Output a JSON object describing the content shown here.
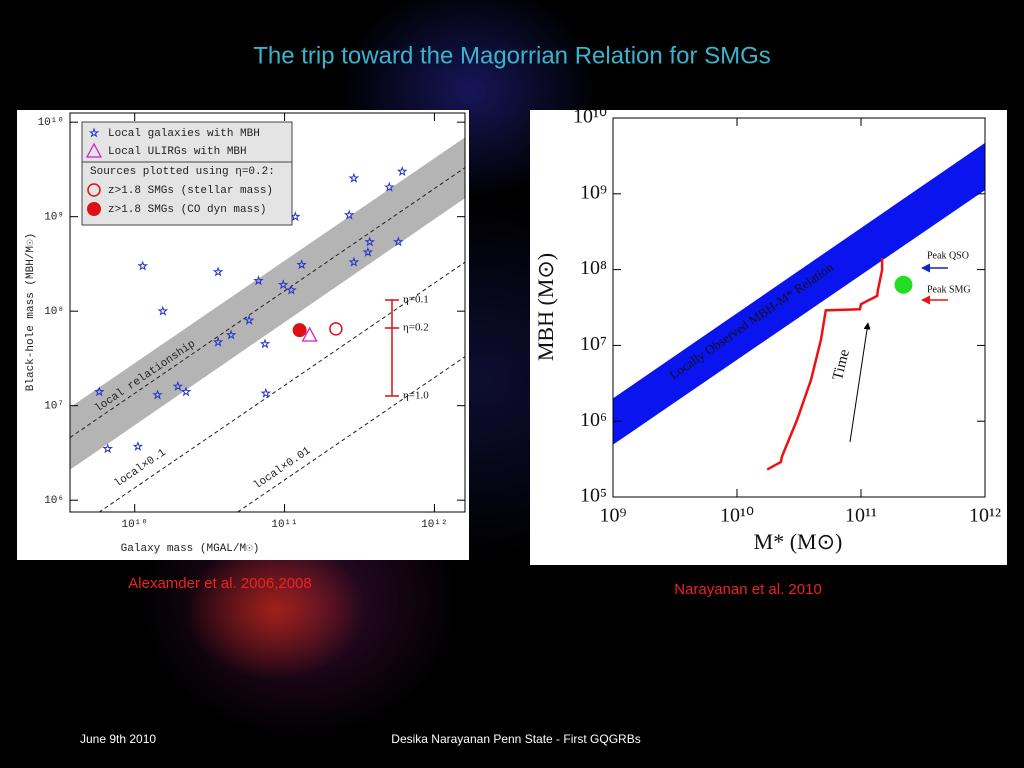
{
  "title": "The trip toward the Magorrian Relation for SMGs",
  "captions": [
    "Alexamder et al. 2006,2008",
    "Narayanan et al. 2010"
  ],
  "footer": {
    "date": "June 9th 2010",
    "text": "Desika Narayanan   Penn State - First GQGRBs"
  },
  "chart_data": [
    {
      "type": "scatter",
      "log_x": true,
      "log_y": true,
      "x_label": "Galaxy mass (MGAL/M☉)",
      "y_label": "Black-hole mass (MBH/M☉)",
      "xlim": [
        3700000000.0,
        1600000000000.0
      ],
      "ylim": [
        750000.0,
        12500000000.0
      ],
      "xticks": [
        {
          "value": 10000000000.0,
          "label": "10¹⁰"
        },
        {
          "value": 100000000000.0,
          "label": "10¹¹"
        },
        {
          "value": 1000000000000.0,
          "label": "10¹²"
        }
      ],
      "yticks": [
        {
          "value": 1000000.0,
          "label": "10⁶"
        },
        {
          "value": 10000000.0,
          "label": "10⁷"
        },
        {
          "value": 100000000.0,
          "label": "10⁸"
        },
        {
          "value": 1000000000.0,
          "label": "10⁹"
        },
        {
          "value": 10000000000.0,
          "label": "10¹⁰"
        }
      ],
      "bands": [
        {
          "color": "#b4b4b4",
          "x": [
            3700000000.0,
            1600000000000.0
          ],
          "lower": [
            2100000.0,
            1570000000.0
          ],
          "upper": [
            9600000.0,
            6900000000.0
          ]
        }
      ],
      "relations": [
        {
          "name": "local relationship",
          "x": [
            3700000000.0,
            1600000000000.0
          ],
          "y": [
            4600000.0,
            3300000000.0
          ]
        },
        {
          "name": "local×0.1",
          "x": [
            3700000000.0,
            1600000000000.0
          ],
          "y": [
            460000.0,
            330000000.0
          ]
        },
        {
          "name": "local×0.01",
          "x": [
            3700000000.0,
            1600000000000.0
          ],
          "y": [
            46000.0,
            33000000.0
          ]
        }
      ],
      "legend_note": "Sources plotted using η=0.2:",
      "series": [
        {
          "name": "Local galaxies with MBH",
          "marker": "star",
          "color": "#2233cc",
          "x": [
            610000000000.0,
            290000000000.0,
            500000000000.0,
            118000000000.0,
            270000000000.0,
            370000000000.0,
            575000000000.0,
            360000000000.0,
            290000000000.0,
            11300000000.0,
            36000000000.0,
            67000000000.0,
            98000000000.0,
            130000000000.0,
            111000000000.0,
            15400000000.0,
            58000000000.0,
            74000000000.0,
            36000000000.0,
            44000000000.0,
            5800000000.0,
            14200000000.0,
            19400000000.0,
            22000000000.0,
            75000000000.0,
            6600000000.0,
            10500000000.0
          ],
          "y": [
            3000000000.0,
            2550000000.0,
            2050000000.0,
            1000000000.0,
            1040000000.0,
            540000000.0,
            540000000.0,
            420000000.0,
            330000000.0,
            300000000.0,
            260000000.0,
            210000000.0,
            190000000.0,
            310000000.0,
            167000000.0,
            100000000.0,
            80000000.0,
            45000000.0,
            47000000.0,
            56000000.0,
            14000000.0,
            13000000.0,
            16000000.0,
            14000000.0,
            13500000.0,
            3500000.0,
            3700000.0
          ]
        },
        {
          "name": "Local ULIRGs with MBH",
          "marker": "triangle",
          "color": "#cc22cc",
          "x": [
            147000000000.0
          ],
          "y": [
            56000000.0
          ]
        },
        {
          "name": "z>1.8 SMGs (stellar mass)",
          "marker": "circle-open",
          "color": "#dd1111",
          "x": [
            220000000000.0
          ],
          "y": [
            65000000.0
          ]
        },
        {
          "name": "z>1.8 SMGs (CO dyn mass)",
          "marker": "circle",
          "color": "#dd1111",
          "x": [
            126000000000.0
          ],
          "y": [
            63000000.0
          ]
        }
      ],
      "annotations": [
        "η=0.1",
        "η=0.2",
        "η=1.0"
      ]
    },
    {
      "type": "scatter",
      "log_x": true,
      "log_y": true,
      "x_label": "M* (M⊙)",
      "y_label": "MBH (M⊙)",
      "xlim": [
        1000000000.0,
        1000000000000.0
      ],
      "ylim": [
        100000.0,
        10000000000.0
      ],
      "xticks": [
        {
          "value": 1000000000.0,
          "label": "10⁹"
        },
        {
          "value": 10000000000.0,
          "label": "10¹⁰"
        },
        {
          "value": 100000000000.0,
          "label": "10¹¹"
        },
        {
          "value": 1000000000000.0,
          "label": "10¹²"
        }
      ],
      "yticks": [
        {
          "value": 100000.0,
          "label": "10⁵"
        },
        {
          "value": 1000000.0,
          "label": "10⁶"
        },
        {
          "value": 10000000.0,
          "label": "10⁷"
        },
        {
          "value": 100000000.0,
          "label": "10⁸"
        },
        {
          "value": 1000000000.0,
          "label": "10⁹"
        },
        {
          "value": 10000000000.0,
          "label": "10¹⁰"
        }
      ],
      "bands": [
        {
          "name": "Locally Observed MBH-M* Relation",
          "color": "#0a14ee",
          "x": [
            1000000000.0,
            1000000000000.0
          ],
          "lower": [
            490000.0,
            1120000000.0
          ],
          "upper": [
            2000000.0,
            4700000000.0
          ]
        }
      ],
      "series": [
        {
          "marker": "line",
          "color": "#ee1111",
          "x": [
            17500000000.0,
            22600000000.0,
            23000000000.0,
            30500000000.0,
            39500000000.0,
            47500000000.0,
            52000000000.0,
            98000000000.0,
            100000000000.0,
            135000000000.0,
            137000000000.0,
            148000000000.0,
            148000000000.0
          ],
          "y": [
            230000.0,
            290000.0,
            340000.0,
            1040000.0,
            3500000.0,
            11800000.0,
            29000000.0,
            30000000.0,
            35000000.0,
            45000000.0,
            54000000.0,
            99000000.0,
            142000000.0
          ]
        },
        {
          "marker": "circle",
          "color": "#22dd22",
          "x": [
            220000000000.0
          ],
          "y": [
            63000000.0
          ]
        }
      ],
      "annotations": [
        "Peak QSO",
        "Peak SMG",
        "Time"
      ]
    }
  ]
}
